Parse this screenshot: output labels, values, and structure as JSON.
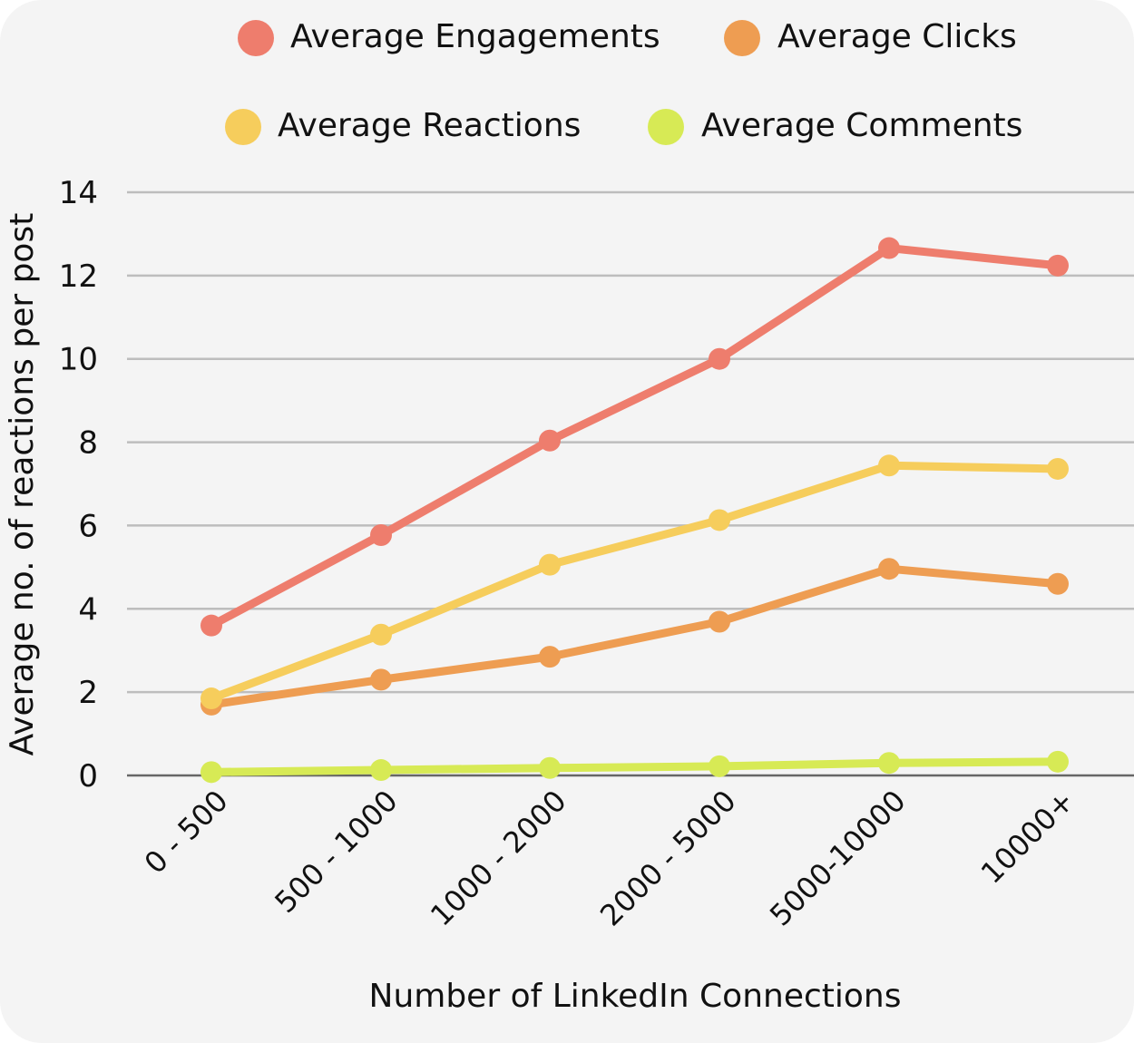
{
  "chart_data": {
    "type": "line",
    "title": "",
    "xlabel": "Number of LinkedIn Connections",
    "ylabel": "Average no. of reactions per post",
    "ylim": [
      0,
      14
    ],
    "yticks": [
      0,
      2,
      4,
      6,
      8,
      10,
      12,
      14
    ],
    "grid": true,
    "legend_position": "top",
    "categories": [
      "0 - 500",
      "500 - 1000",
      "1000 - 2000",
      "2000 - 5000",
      "5000-10000",
      "10000+"
    ],
    "series": [
      {
        "name": "Average Engagements",
        "color": "#EE7D6D",
        "values": [
          3.6,
          5.77,
          8.04,
          10.0,
          12.66,
          12.24
        ]
      },
      {
        "name": "Average Clicks",
        "color": "#EE9D52",
        "values": [
          1.7,
          2.3,
          2.85,
          3.69,
          4.96,
          4.6
        ]
      },
      {
        "name": "Average Reactions",
        "color": "#F6CD5C",
        "values": [
          1.85,
          3.38,
          5.06,
          6.13,
          7.44,
          7.36
        ]
      },
      {
        "name": "Average Comments",
        "color": "#D7EA55",
        "values": [
          0.08,
          0.13,
          0.18,
          0.22,
          0.3,
          0.33
        ]
      }
    ]
  }
}
